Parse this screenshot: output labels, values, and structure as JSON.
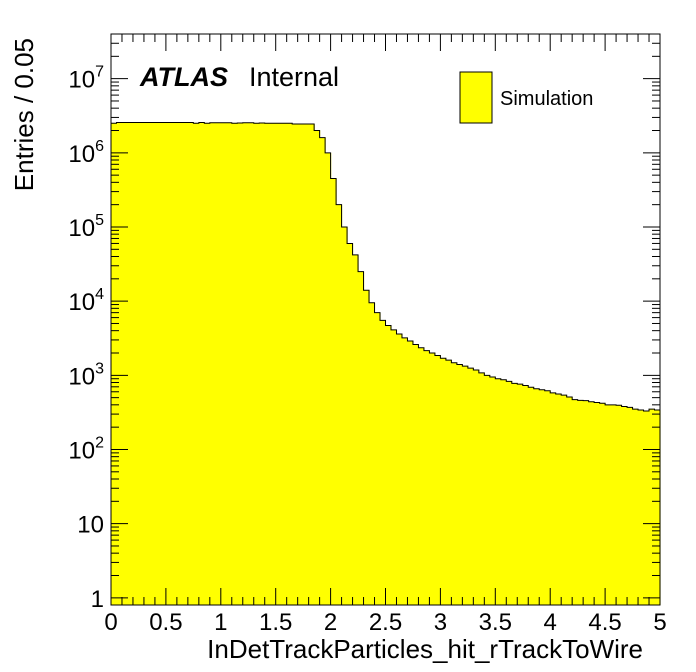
{
  "chart_data": {
    "type": "histogram",
    "xlabel": "InDetTrackParticles_hit_rTrackToWire",
    "ylabel": "Entries / 0.05",
    "experiment_label": "ATLAS",
    "status_label": "Internal",
    "legend": [
      {
        "label": "Simulation",
        "color": "#ffff00"
      }
    ],
    "legend_placement": "top-right",
    "x_range": [
      0,
      5
    ],
    "y_range": [
      0.8,
      40000000
    ],
    "y_scale": "log",
    "bin_width": 0.05,
    "fill_color": "#ffff00",
    "x_tick_labels": [
      "0",
      "0.5",
      "1",
      "1.5",
      "2",
      "2.5",
      "3",
      "3.5",
      "4",
      "4.5",
      "5"
    ],
    "x_tick_values": [
      0,
      0.5,
      1,
      1.5,
      2,
      2.5,
      3,
      3.5,
      4,
      4.5,
      5
    ],
    "y_tick_labels": [
      {
        "value": 1,
        "base": "1",
        "exp": ""
      },
      {
        "value": 10,
        "base": "10",
        "exp": ""
      },
      {
        "value": 100,
        "base": "10",
        "exp": "2"
      },
      {
        "value": 1000,
        "base": "10",
        "exp": "3"
      },
      {
        "value": 10000,
        "base": "10",
        "exp": "4"
      },
      {
        "value": 100000,
        "base": "10",
        "exp": "5"
      },
      {
        "value": 1000000,
        "base": "10",
        "exp": "6"
      },
      {
        "value": 10000000,
        "base": "10",
        "exp": "7"
      }
    ],
    "values": [
      2500000,
      2560000,
      2560000,
      2560000,
      2560000,
      2560000,
      2560000,
      2560000,
      2560000,
      2560000,
      2560000,
      2560000,
      2560000,
      2560000,
      2560000,
      2500000,
      2560000,
      2500000,
      2540000,
      2540000,
      2540000,
      2540000,
      2500000,
      2520000,
      2540000,
      2540000,
      2500000,
      2520000,
      2500000,
      2500000,
      2500000,
      2500000,
      2500000,
      2450000,
      2450000,
      2450000,
      2450000,
      2000000,
      1600000,
      1000000,
      450000,
      200000,
      100000,
      60000,
      42000,
      25000,
      14000,
      9500,
      7000,
      5500,
      4700,
      4100,
      3600,
      3200,
      2900,
      2600,
      2350,
      2150,
      2000,
      1850,
      1700,
      1600,
      1480,
      1400,
      1330,
      1250,
      1180,
      1080,
      1000,
      950,
      900,
      870,
      830,
      780,
      760,
      730,
      690,
      660,
      640,
      620,
      580,
      560,
      540,
      510,
      470,
      460,
      455,
      440,
      430,
      420,
      400,
      400,
      395,
      380,
      370,
      350,
      340,
      330,
      350,
      340
    ]
  }
}
